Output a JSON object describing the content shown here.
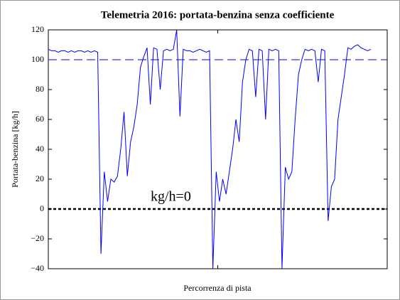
{
  "chart_data": {
    "type": "line",
    "title": "Telemetria 2016: portata-benzina senza coefficiente",
    "x_label": "Percorrenza di pista",
    "y_label": "Portata-benzina  [kg/h]",
    "ylim": [
      -40,
      120
    ],
    "yticks": [
      {
        "value": -40,
        "label": "−40"
      },
      {
        "value": -20,
        "label": "−20"
      },
      0,
      20,
      40,
      60,
      80,
      100,
      120
    ],
    "grid": false,
    "series": [
      {
        "name": "portata-benzina",
        "color": "#0000ff",
        "values": [
          107,
          106,
          106,
          105,
          106,
          106,
          105,
          106,
          105,
          106,
          106,
          105,
          106,
          105,
          106,
          105,
          -30,
          25,
          5,
          20,
          18,
          22,
          40,
          65,
          22,
          45,
          55,
          70,
          95,
          102,
          108,
          70,
          108,
          107,
          80,
          106,
          107,
          106,
          107,
          120,
          62,
          107,
          106,
          106,
          105,
          106,
          107,
          106,
          105,
          106,
          -40,
          25,
          5,
          20,
          10,
          25,
          40,
          60,
          45,
          85,
          100,
          107,
          106,
          75,
          107,
          106,
          60,
          107,
          106,
          107,
          106,
          -40,
          28,
          20,
          25,
          60,
          90,
          100,
          107,
          106,
          107,
          106,
          85,
          107,
          106,
          -8,
          15,
          20,
          60,
          75,
          90,
          108,
          107,
          109,
          110,
          108,
          107,
          106,
          107
        ]
      }
    ],
    "reference_lines": [
      {
        "value": 100,
        "color": "#0000ff",
        "style": "dashed"
      },
      {
        "value": 0,
        "color": "#000000",
        "style": "dotted-thick"
      }
    ],
    "annotation": "kg/h=0"
  }
}
